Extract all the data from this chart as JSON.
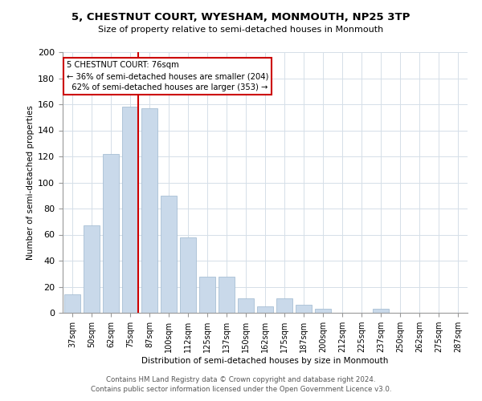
{
  "title": "5, CHESTNUT COURT, WYESHAM, MONMOUTH, NP25 3TP",
  "subtitle": "Size of property relative to semi-detached houses in Monmouth",
  "xlabel": "Distribution of semi-detached houses by size in Monmouth",
  "ylabel": "Number of semi-detached properties",
  "footer1": "Contains HM Land Registry data © Crown copyright and database right 2024.",
  "footer2": "Contains public sector information licensed under the Open Government Licence v3.0.",
  "bar_color": "#c9d9ea",
  "bar_edge_color": "#a8bfd4",
  "grid_color": "#d5dfe8",
  "categories": [
    "37sqm",
    "50sqm",
    "62sqm",
    "75sqm",
    "87sqm",
    "100sqm",
    "112sqm",
    "125sqm",
    "137sqm",
    "150sqm",
    "162sqm",
    "175sqm",
    "187sqm",
    "200sqm",
    "212sqm",
    "225sqm",
    "237sqm",
    "250sqm",
    "262sqm",
    "275sqm",
    "287sqm"
  ],
  "values": [
    14,
    67,
    122,
    158,
    157,
    90,
    58,
    28,
    28,
    11,
    5,
    11,
    6,
    3,
    0,
    0,
    3,
    0,
    0,
    0,
    0
  ],
  "property_label": "5 CHESTNUT COURT: 76sqm",
  "pct_smaller": 36,
  "pct_larger": 62,
  "n_smaller": 204,
  "n_larger": 353,
  "vline_x_index": 3,
  "annotation_box_color": "#cc0000",
  "ylim": [
    0,
    200
  ],
  "yticks": [
    0,
    20,
    40,
    60,
    80,
    100,
    120,
    140,
    160,
    180,
    200
  ]
}
